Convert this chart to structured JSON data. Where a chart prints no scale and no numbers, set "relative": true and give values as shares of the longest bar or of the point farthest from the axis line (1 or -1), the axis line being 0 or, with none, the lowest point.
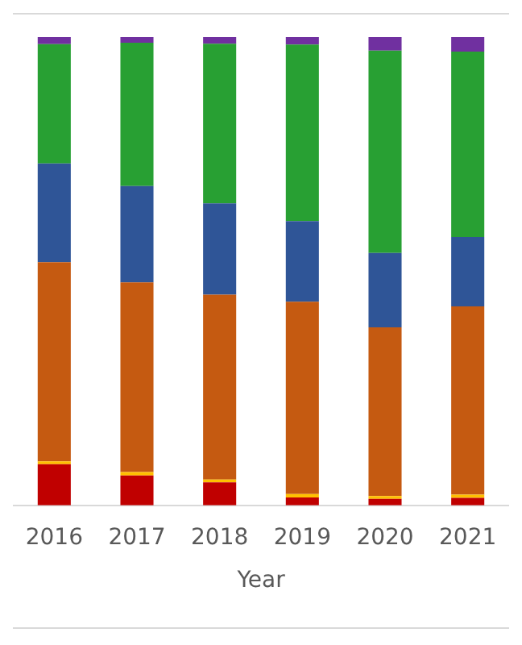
{
  "chart_data": {
    "type": "bar",
    "stacked": true,
    "relative": true,
    "xlabel": "Year",
    "categories": [
      "2016",
      "2017",
      "2018",
      "2019",
      "2020",
      "2021"
    ],
    "legend": false,
    "series": [
      {
        "color": "#c00000",
        "values": [
          0.088,
          0.064,
          0.049,
          0.017,
          0.014,
          0.016
        ]
      },
      {
        "color": "#ffc000",
        "values": [
          0.006,
          0.007,
          0.006,
          0.007,
          0.006,
          0.007
        ]
      },
      {
        "color": "#c55a11",
        "values": [
          0.425,
          0.405,
          0.395,
          0.411,
          0.36,
          0.402
        ]
      },
      {
        "color": "#2f5597",
        "values": [
          0.211,
          0.206,
          0.195,
          0.172,
          0.159,
          0.148
        ]
      },
      {
        "color": "#28a033",
        "values": [
          0.255,
          0.306,
          0.341,
          0.377,
          0.432,
          0.396
        ]
      },
      {
        "color": "#7030a0",
        "values": [
          0.015,
          0.012,
          0.014,
          0.016,
          0.029,
          0.031
        ]
      }
    ]
  }
}
